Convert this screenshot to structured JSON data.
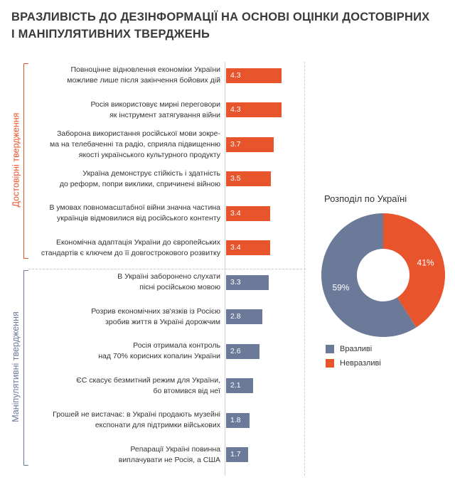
{
  "title": {
    "line1": "Вразливість до дезінформації на основі оцінки достовірних",
    "line2": "і маніпулятивних тверджень"
  },
  "colors": {
    "credible": "#e8542c",
    "manipulative": "#6b7a99"
  },
  "chart_data": [
    {
      "type": "bar",
      "orientation": "horizontal",
      "groups": [
        "Достовірні твердження",
        "Маніпулятивні твердження"
      ],
      "categories": [
        [
          "Повноцінне відновлення економіки України",
          "можливе лише після закінчення бойових дій"
        ],
        [
          "Росія використовує мирні переговори",
          "як інструмент затягування війни"
        ],
        [
          "Заборона використання російської мови зокре-",
          "ма на телебаченні та радіо, сприяла підвищенню",
          "якості українського культурного продукту"
        ],
        [
          "Україна демонструє стійкість і здатність",
          "до реформ, попри виклики, спричинені війною"
        ],
        [
          "В умовах повномасштабної війни значна частина",
          "українців відмовилися від російського контенту"
        ],
        [
          "Економічна адаптація України до європейських",
          "стандартів є ключем до її довгострокового розвитку"
        ],
        [
          "В Україні заборонено слухати",
          "пісні російською мовою"
        ],
        [
          "Розрив економічних зв'язків із Росією",
          "зробив життя в Україні дорожчим"
        ],
        [
          "Росія отримала контроль",
          "над 70% корисних копалин України"
        ],
        [
          "ЄС скасує безмитний режим для України,",
          "бо втомився від неї"
        ],
        [
          "Грошей не вистачає: в Україні продають музейні",
          "експонати для підтримки військових"
        ],
        [
          "Репарації Україні повинна",
          "виплачувати не Росія, а США"
        ]
      ],
      "values": [
        4.3,
        4.3,
        3.7,
        3.5,
        3.4,
        3.4,
        3.3,
        2.8,
        2.6,
        2.1,
        1.8,
        1.7
      ],
      "value_labels": [
        "4.3",
        "4.3",
        "3.7",
        "3.5",
        "3.4",
        "3.4",
        "3.3",
        "2.8",
        "2.6",
        "2.1",
        "1.8",
        "1.7"
      ],
      "group_index": [
        0,
        0,
        0,
        0,
        0,
        0,
        1,
        1,
        1,
        1,
        1,
        1
      ],
      "xlim": [
        0,
        5
      ]
    },
    {
      "type": "pie",
      "donut": true,
      "title": "Розподіл по Україні",
      "slices": [
        {
          "name": "Вразливі",
          "value": 59,
          "label": "59%",
          "color": "#6b7a99"
        },
        {
          "name": "Невразливі",
          "value": 41,
          "label": "41%",
          "color": "#e8542c"
        }
      ],
      "legend": "bottom"
    }
  ]
}
